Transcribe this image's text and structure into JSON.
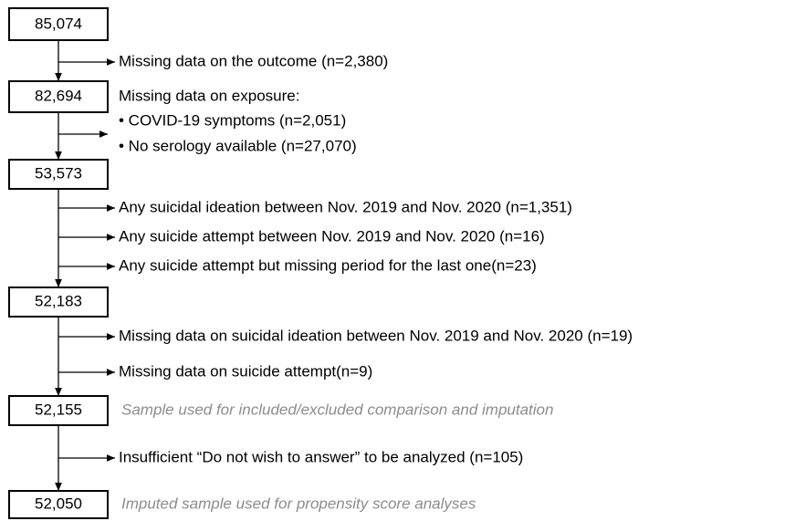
{
  "steps": [
    {
      "count": "85,074",
      "exclusions": [
        "Missing data on the outcome (n=2,380)"
      ]
    },
    {
      "count": "82,694",
      "exclusion_header": "Missing data on exposure:",
      "bullets": [
        "• COVID-19 symptoms (n=2,051)",
        "• No serology available (n=27,070)"
      ]
    },
    {
      "count": "53,573",
      "exclusions": [
        "Any suicidal ideation between Nov. 2019 and Nov. 2020 (n=1,351)",
        "Any suicide attempt between Nov. 2019 and Nov. 2020 (n=16)",
        "Any suicide attempt but missing period for the last one(n=23)"
      ]
    },
    {
      "count": "52,183",
      "exclusions": [
        "Missing data on suicidal ideation between Nov. 2019 and Nov. 2020 (n=19)",
        "Missing data on suicide attempt(n=9)"
      ]
    },
    {
      "count": "52,155",
      "note": "Sample used for included/excluded comparison and imputation",
      "exclusions": [
        "Insufficient “Do not wish to answer” to be analyzed (n=105)"
      ]
    },
    {
      "count": "52,050",
      "note": "Imputed sample used for propensity score analyses"
    }
  ]
}
